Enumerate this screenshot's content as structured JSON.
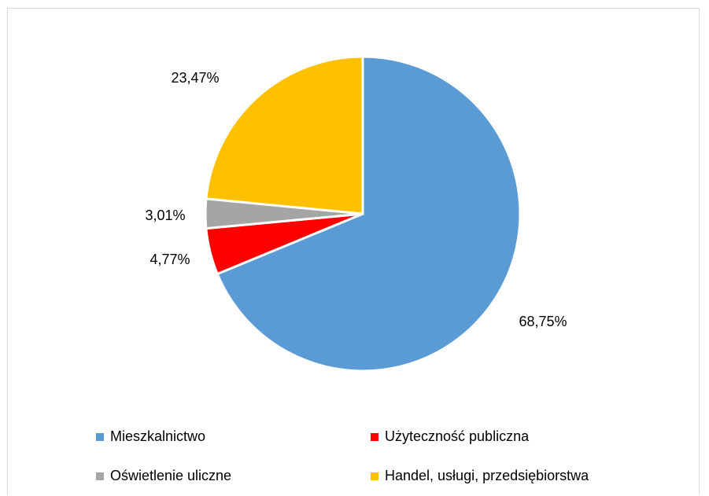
{
  "chart_data": {
    "type": "pie",
    "series": [
      {
        "name": "Mieszkalnictwo",
        "value": 68.75,
        "label": "68,75%",
        "color": "#5b9bd5"
      },
      {
        "name": "Użyteczność publiczna",
        "value": 4.77,
        "label": "4,77%",
        "color": "#ff0000"
      },
      {
        "name": "Oświetlenie uliczne",
        "value": 3.01,
        "label": "3,01%",
        "color": "#a5a5a5"
      },
      {
        "name": "Handel, usługi, przedsiębiorstwa",
        "value": 23.47,
        "label": "23,47%",
        "color": "#ffc000"
      }
    ],
    "start_angle": "12 o'clock",
    "direction": "clockwise",
    "legend_position": "bottom"
  }
}
